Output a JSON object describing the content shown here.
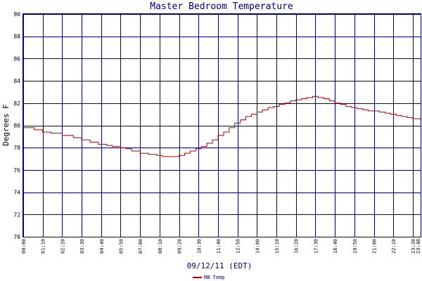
{
  "chart_data": {
    "type": "line",
    "title": "Master Bedroom Temperature",
    "xlabel": "09/12/11 (EDT)",
    "ylabel": "Degrees F",
    "ylim": [
      70,
      90
    ],
    "yticks": [
      70,
      72,
      74,
      76,
      78,
      80,
      82,
      84,
      86,
      88,
      90
    ],
    "xlim": [
      "00:00",
      "23:48"
    ],
    "xticks": [
      "00:00",
      "01:10",
      "02:20",
      "03:30",
      "04:40",
      "05:50",
      "07:00",
      "08:10",
      "09:20",
      "10:30",
      "11:40",
      "12:50",
      "14:00",
      "15:10",
      "16:20",
      "17:30",
      "18:40",
      "19:50",
      "21:00",
      "22:10",
      "23:20",
      "23:48"
    ],
    "grid": true,
    "legend_position": "bottom-left",
    "colors": {
      "series": "#b00000",
      "grid": "#000080",
      "title": "#000080"
    },
    "series": [
      {
        "name": "MB Temp",
        "step": true,
        "x": [
          "00:00",
          "00:40",
          "01:10",
          "01:40",
          "02:20",
          "03:00",
          "03:30",
          "04:00",
          "04:30",
          "05:00",
          "05:20",
          "05:50",
          "06:10",
          "06:30",
          "07:00",
          "07:30",
          "08:00",
          "08:20",
          "08:50",
          "09:20",
          "09:40",
          "10:00",
          "10:20",
          "10:40",
          "11:00",
          "11:20",
          "11:40",
          "12:00",
          "12:20",
          "12:40",
          "13:00",
          "13:20",
          "13:40",
          "14:00",
          "14:20",
          "14:40",
          "15:00",
          "15:20",
          "15:40",
          "16:00",
          "16:20",
          "16:40",
          "17:00",
          "17:20",
          "17:40",
          "18:00",
          "18:20",
          "18:40",
          "19:00",
          "19:20",
          "19:40",
          "20:00",
          "20:20",
          "20:40",
          "21:00",
          "21:20",
          "21:40",
          "22:00",
          "22:20",
          "22:40",
          "23:00",
          "23:20",
          "23:48"
        ],
        "y": [
          79.8,
          79.6,
          79.4,
          79.3,
          79.1,
          78.9,
          78.7,
          78.5,
          78.3,
          78.2,
          78.1,
          78.0,
          77.9,
          77.7,
          77.5,
          77.4,
          77.3,
          77.2,
          77.2,
          77.3,
          77.5,
          77.7,
          77.9,
          78.1,
          78.4,
          78.7,
          79.1,
          79.4,
          79.8,
          80.2,
          80.5,
          80.8,
          81.0,
          81.2,
          81.4,
          81.6,
          81.7,
          81.9,
          82.0,
          82.2,
          82.3,
          82.4,
          82.5,
          82.6,
          82.5,
          82.4,
          82.2,
          82.0,
          81.9,
          81.7,
          81.6,
          81.5,
          81.4,
          81.3,
          81.3,
          81.2,
          81.1,
          81.0,
          80.9,
          80.8,
          80.7,
          80.6,
          80.5
        ]
      }
    ]
  }
}
